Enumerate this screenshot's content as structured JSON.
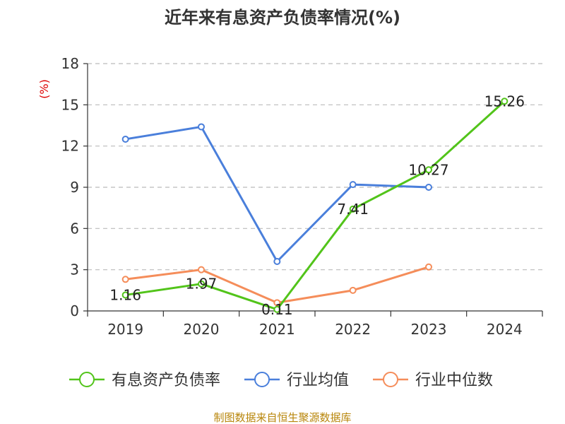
{
  "chart_data": {
    "type": "line",
    "title": "近年来有息资产负债率情况(%)",
    "ylabel": "(%)",
    "xlabel": "",
    "categories": [
      "2019",
      "2020",
      "2021",
      "2022",
      "2023",
      "2024"
    ],
    "ylim": [
      0,
      18
    ],
    "yticks": [
      0,
      3,
      6,
      9,
      12,
      15,
      18
    ],
    "grid": true,
    "legend_position": "bottom",
    "series": [
      {
        "name": "有息资产负债率",
        "color": "#52c41a",
        "values": [
          1.16,
          1.97,
          0.11,
          7.41,
          10.27,
          15.26
        ],
        "labels": [
          "1.16",
          "1.97",
          "0.11",
          "7.41",
          "10.27",
          "15.26"
        ]
      },
      {
        "name": "行业均值",
        "color": "#4a7fdb",
        "values": [
          12.5,
          13.4,
          3.6,
          9.2,
          9.0,
          null
        ]
      },
      {
        "name": "行业中位数",
        "color": "#f58d5a",
        "values": [
          2.3,
          3.0,
          0.6,
          1.5,
          3.2,
          null
        ]
      }
    ],
    "source": "制图数据来自恒生聚源数据库"
  }
}
